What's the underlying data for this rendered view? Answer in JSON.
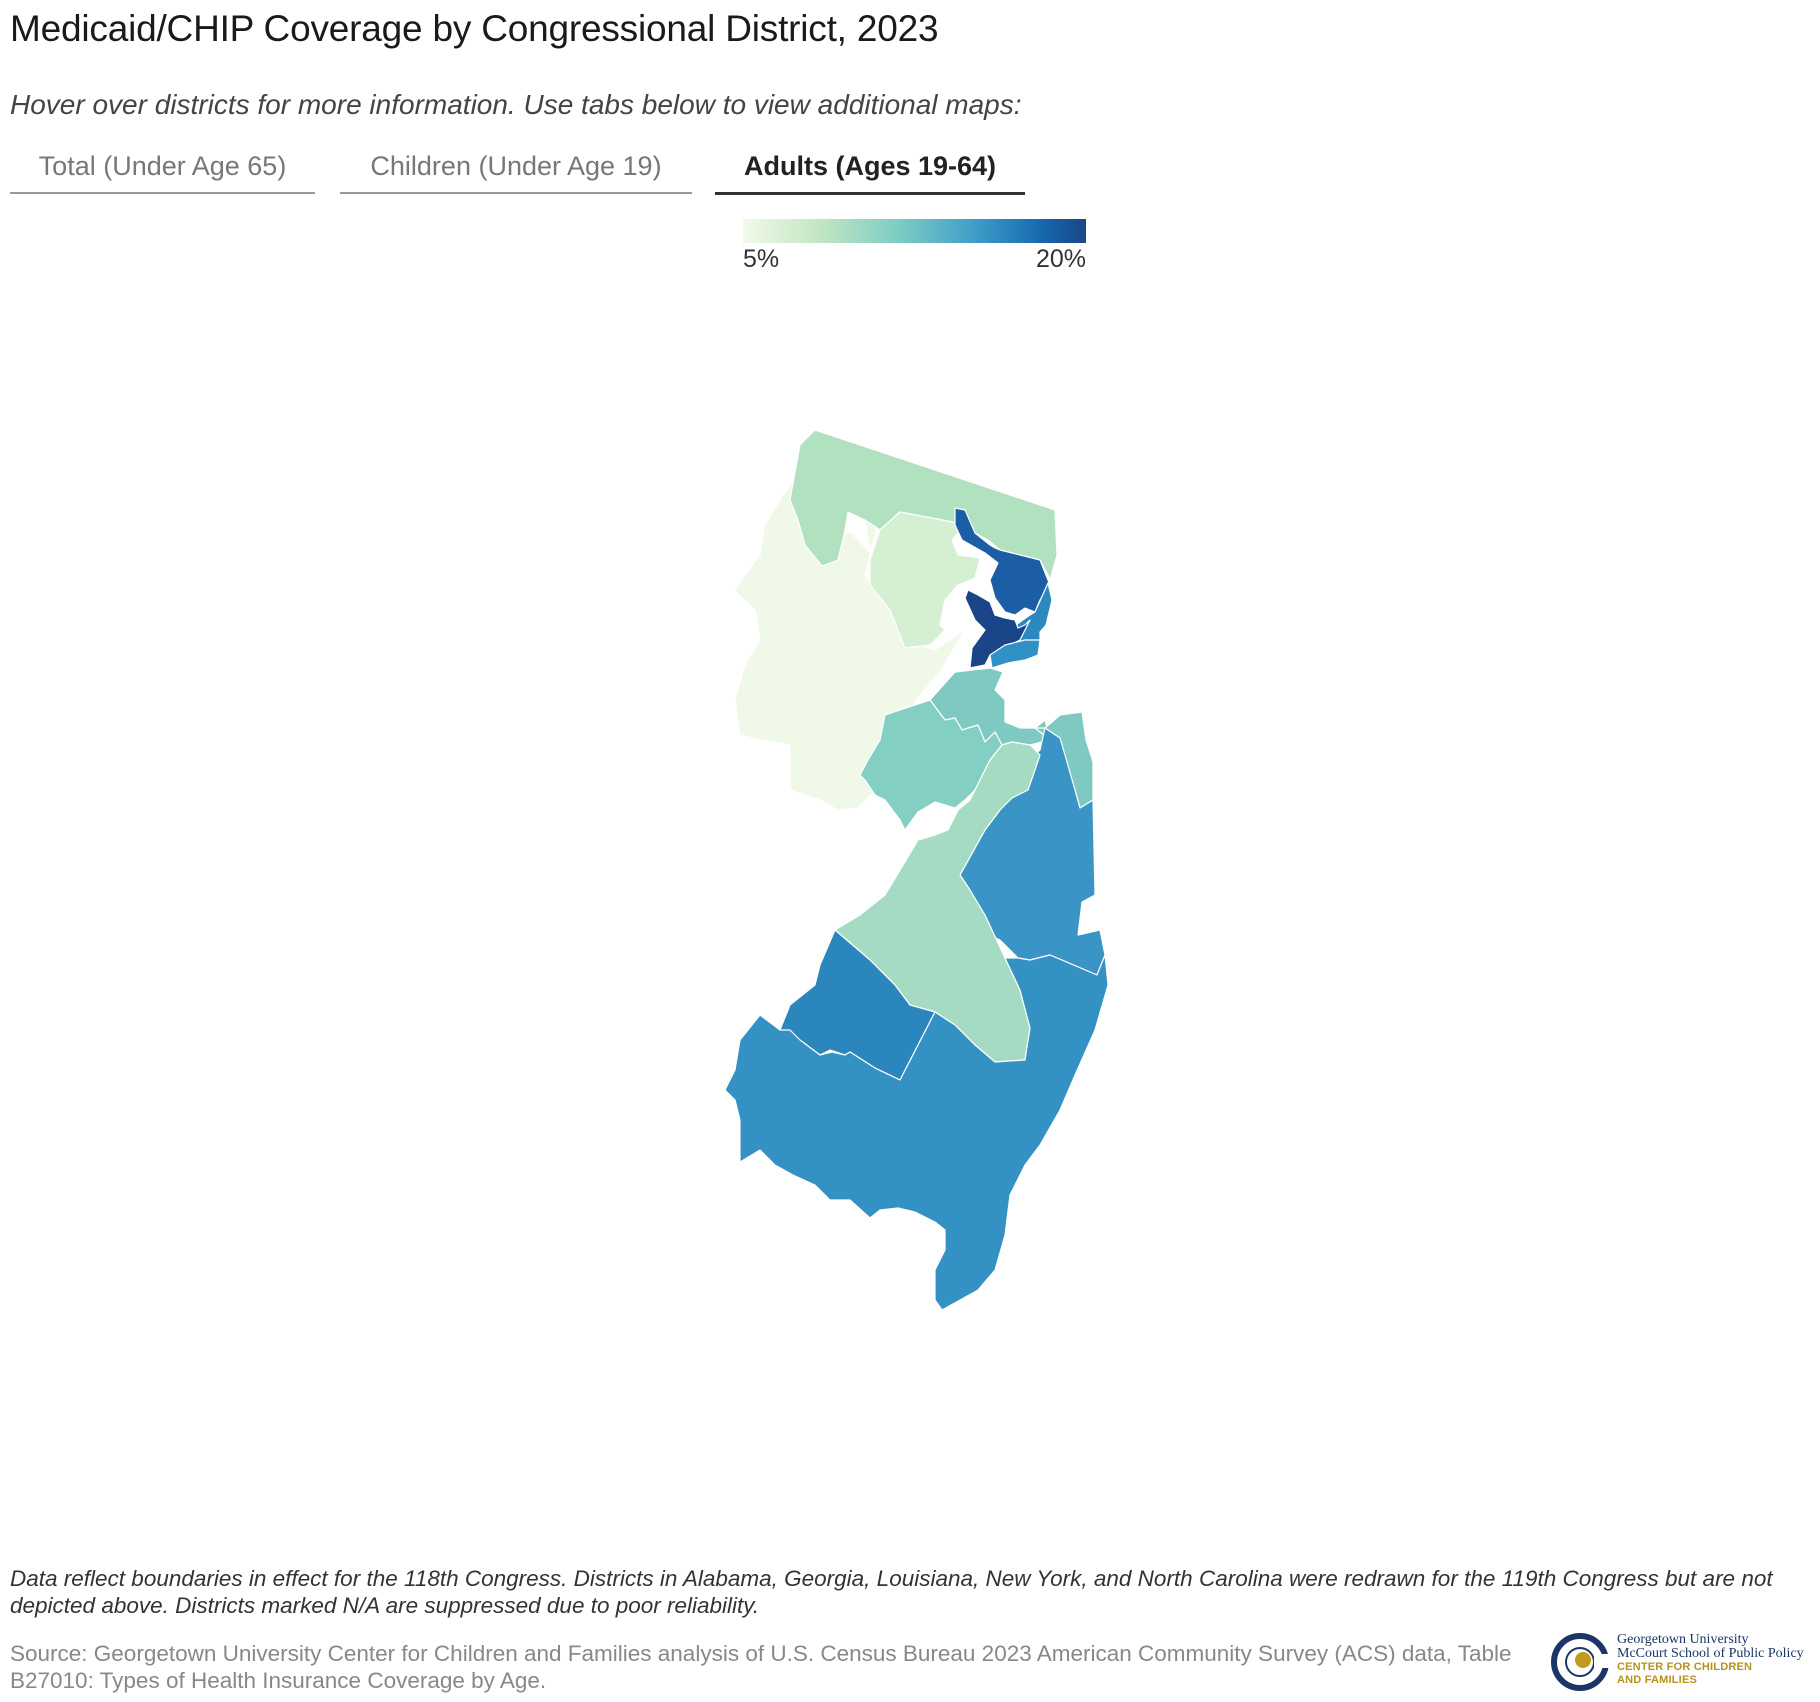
{
  "title": "Medicaid/CHIP Coverage by Congressional District, 2023",
  "subtitle": "Hover over districts for more information. Use tabs below to view additional maps:",
  "tabs": [
    {
      "label": "Total (Under Age 65)",
      "active": false
    },
    {
      "label": "Children (Under Age 19)",
      "active": false
    },
    {
      "label": "Adults (Ages 19-64)",
      "active": true
    }
  ],
  "legend": {
    "min_label": "5%",
    "max_label": "20%",
    "min": 5,
    "max": 20,
    "colors": [
      "#f2f9e9",
      "#c3e6c3",
      "#7ecdc4",
      "#3e9cc8",
      "#1566ac",
      "#1b4589"
    ]
  },
  "map": {
    "state": "New Jersey",
    "districts": [
      {
        "id": "nw-district",
        "color": "#f0f8e8"
      },
      {
        "id": "north-district",
        "color": "#b2e1bf"
      },
      {
        "id": "north-central-district",
        "color": "#d4efd2"
      },
      {
        "id": "paterson-district",
        "color": "#1c5ea5"
      },
      {
        "id": "bergen-district",
        "color": "#2c88bf"
      },
      {
        "id": "newark-district",
        "color": "#1b4589"
      },
      {
        "id": "hudson-district",
        "color": "#3091c5"
      },
      {
        "id": "middlesex-north-district",
        "color": "#7ecac2"
      },
      {
        "id": "central-district",
        "color": "#84cfc3"
      },
      {
        "id": "shore-north-district",
        "color": "#7ecac2"
      },
      {
        "id": "monmouth-district",
        "color": "#3a95c6"
      },
      {
        "id": "central-south-district",
        "color": "#a6dbc3"
      },
      {
        "id": "camden-district",
        "color": "#2a86bd"
      },
      {
        "id": "south-district",
        "color": "#3391c4"
      }
    ]
  },
  "footnote": "Data reflect boundaries in effect for the 118th Congress. Districts in Alabama, Georgia, Louisiana, New York, and North Carolina were redrawn for the 119th Congress but are not depicted above. Districts marked N/A are suppressed due to poor reliability.",
  "source": "Source: Georgetown University Center for Children and Families analysis of U.S. Census Bureau 2023 American Community Survey (ACS) data, Table B27010: Types of Health Insurance Coverage by Age.",
  "logo": {
    "line1": "Georgetown University",
    "line2": "McCourt School of Public Policy",
    "line3": "CENTER FOR CHILDREN",
    "line4": "AND FAMILIES"
  }
}
